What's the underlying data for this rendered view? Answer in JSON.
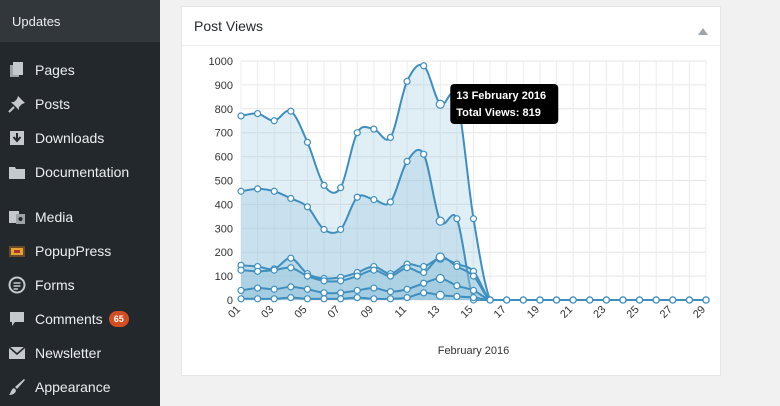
{
  "sidebar": {
    "top_item": "Updates",
    "items": [
      {
        "label": "Pages",
        "icon": "pages-icon"
      },
      {
        "label": "Posts",
        "icon": "pin-icon"
      },
      {
        "label": "Downloads",
        "icon": "download-icon"
      },
      {
        "label": "Documentation",
        "icon": "folder-icon"
      },
      {
        "label": "Media",
        "icon": "media-icon"
      },
      {
        "label": "PopupPress",
        "icon": "popuppress-icon"
      },
      {
        "label": "Forms",
        "icon": "forms-icon"
      },
      {
        "label": "Comments",
        "icon": "comment-icon",
        "badge": "65"
      },
      {
        "label": "Newsletter",
        "icon": "envelope-icon"
      },
      {
        "label": "Appearance",
        "icon": "brush-icon"
      }
    ]
  },
  "widget": {
    "title": "Post Views"
  },
  "colors": {
    "line": "#3e8fbf",
    "fill": "#8fc1dc",
    "sidebar_bg": "#23282d",
    "badge": "#d54e21"
  },
  "chart_data": {
    "type": "area",
    "xlabel": "February 2016",
    "ylabel": "",
    "ylim": [
      0,
      1000
    ],
    "yticks": [
      0,
      100,
      200,
      300,
      400,
      500,
      600,
      700,
      800,
      900,
      1000
    ],
    "x_tick_labels": [
      "01",
      "03",
      "05",
      "07",
      "09",
      "11",
      "13",
      "15",
      "17",
      "19",
      "21",
      "23",
      "25",
      "27",
      "29"
    ],
    "x": [
      "01",
      "02",
      "03",
      "04",
      "05",
      "06",
      "07",
      "08",
      "09",
      "10",
      "11",
      "12",
      "13",
      "14",
      "15",
      "16",
      "17",
      "18",
      "19",
      "20",
      "21",
      "22",
      "23",
      "24",
      "25",
      "26",
      "27",
      "28",
      "29"
    ],
    "series": [
      {
        "values": [
          770,
          780,
          750,
          790,
          660,
          480,
          470,
          700,
          715,
          680,
          915,
          980,
          819,
          840,
          340,
          0,
          0,
          0,
          0,
          0,
          0,
          0,
          0,
          0,
          0,
          0,
          0,
          0,
          0
        ]
      },
      {
        "values": [
          455,
          465,
          455,
          425,
          390,
          295,
          295,
          430,
          420,
          410,
          580,
          610,
          330,
          340,
          0,
          0,
          0,
          0,
          0,
          0,
          0,
          0,
          0,
          0,
          0,
          0,
          0,
          0,
          0
        ]
      },
      {
        "values": [
          145,
          140,
          130,
          175,
          110,
          90,
          95,
          115,
          140,
          110,
          150,
          140,
          175,
          150,
          120,
          0,
          0,
          0,
          0,
          0,
          0,
          0,
          0,
          0,
          0,
          0,
          0,
          0,
          0
        ]
      },
      {
        "values": [
          125,
          120,
          125,
          135,
          100,
          80,
          80,
          100,
          125,
          100,
          135,
          115,
          180,
          140,
          100,
          0,
          0,
          0,
          0,
          0,
          0,
          0,
          0,
          0,
          0,
          0,
          0,
          0,
          0
        ]
      },
      {
        "values": [
          40,
          50,
          45,
          55,
          45,
          30,
          30,
          40,
          50,
          35,
          45,
          70,
          90,
          60,
          40,
          0,
          0,
          0,
          0,
          0,
          0,
          0,
          0,
          0,
          0,
          0,
          0,
          0,
          0
        ]
      },
      {
        "values": [
          5,
          5,
          5,
          10,
          5,
          5,
          5,
          10,
          5,
          5,
          10,
          30,
          20,
          15,
          10,
          0,
          0,
          0,
          0,
          0,
          0,
          0,
          0,
          0,
          0,
          0,
          0,
          0,
          0
        ]
      }
    ],
    "tooltip": {
      "date": "13 February 2016",
      "text": "Total Views: 819",
      "index": 12
    },
    "grid": true,
    "legend": "none"
  }
}
